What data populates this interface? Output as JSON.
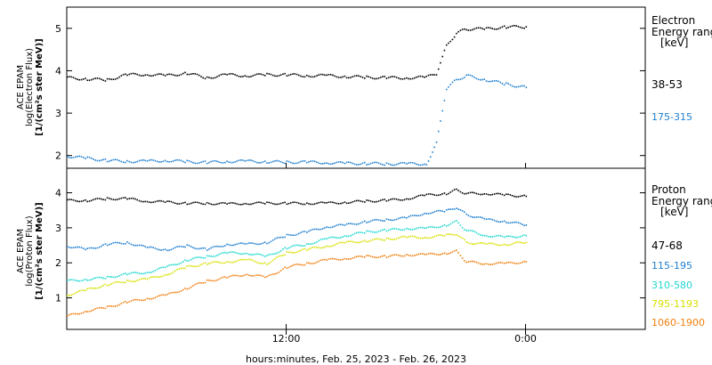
{
  "chart_data": [
    {
      "type": "scatter",
      "panel": "electron",
      "ylabel_lines": [
        "ACE EPAM",
        "log(Electron Flux)",
        "[1/(cm²s ster MeV)]"
      ],
      "ylim": [
        1.7,
        5.5
      ],
      "yticks": [
        "2",
        "3",
        "4",
        "5"
      ],
      "legend_title_lines": [
        "Electron",
        "Energy range",
        "[keV]"
      ],
      "series": [
        {
          "name": "38-53",
          "color": "#000000",
          "points": [
            [
              -12,
              3.9
            ],
            [
              -11,
              3.85
            ],
            [
              -10,
              3.82
            ],
            [
              -9,
              3.8
            ],
            [
              -8,
              3.92
            ],
            [
              -7,
              3.93
            ],
            [
              -6,
              3.9
            ],
            [
              -5,
              3.96
            ],
            [
              -4,
              3.85
            ],
            [
              -3,
              3.92
            ],
            [
              -2,
              3.9
            ],
            [
              -1,
              3.92
            ],
            [
              0,
              3.92
            ],
            [
              1,
              3.9
            ],
            [
              2,
              3.9
            ],
            [
              3,
              3.88
            ],
            [
              4,
              3.86
            ],
            [
              5,
              3.85
            ],
            [
              6,
              3.85
            ],
            [
              7,
              3.86
            ],
            [
              7.5,
              3.95
            ],
            [
              8,
              4.6
            ],
            [
              8.5,
              4.9
            ],
            [
              9,
              5.0
            ],
            [
              10,
              5.0
            ],
            [
              11,
              5.05
            ],
            [
              12,
              5.05
            ]
          ]
        },
        {
          "name": "175-315",
          "color": "#1f7fd0",
          "points": [
            [
              -12,
              2.05
            ],
            [
              -11,
              2.0
            ],
            [
              -10,
              1.95
            ],
            [
              -9,
              1.9
            ],
            [
              -8,
              1.88
            ],
            [
              -7,
              1.88
            ],
            [
              -6,
              1.9
            ],
            [
              -5,
              1.87
            ],
            [
              -4,
              1.85
            ],
            [
              -3,
              1.88
            ],
            [
              -2,
              1.88
            ],
            [
              -1,
              1.87
            ],
            [
              0,
              1.86
            ],
            [
              1,
              1.86
            ],
            [
              2,
              1.85
            ],
            [
              3,
              1.83
            ],
            [
              4,
              1.83
            ],
            [
              5,
              1.82
            ],
            [
              6,
              1.82
            ],
            [
              7,
              1.82
            ],
            [
              7.5,
              2.3
            ],
            [
              8,
              3.6
            ],
            [
              8.5,
              3.8
            ],
            [
              9,
              3.9
            ],
            [
              10,
              3.8
            ],
            [
              11,
              3.7
            ],
            [
              12,
              3.62
            ]
          ]
        }
      ]
    },
    {
      "type": "scatter",
      "panel": "proton",
      "ylabel_lines": [
        "ACE EPAM",
        "log(Proton Flux)",
        "[1/(cm²s ster MeV)]"
      ],
      "ylim": [
        0.1,
        4.7
      ],
      "yticks": [
        "1",
        "2",
        "3",
        "4"
      ],
      "legend_title_lines": [
        "Proton",
        "Energy range",
        "[keV]"
      ],
      "series": [
        {
          "name": "47-68",
          "color": "#000000",
          "points": [
            [
              -12,
              3.75
            ],
            [
              -11,
              3.8
            ],
            [
              -10,
              3.8
            ],
            [
              -9,
              3.85
            ],
            [
              -8,
              3.85
            ],
            [
              -7,
              3.78
            ],
            [
              -6,
              3.75
            ],
            [
              -5,
              3.72
            ],
            [
              -4,
              3.72
            ],
            [
              -3,
              3.7
            ],
            [
              -2,
              3.72
            ],
            [
              -1,
              3.72
            ],
            [
              0,
              3.72
            ],
            [
              1,
              3.72
            ],
            [
              2,
              3.72
            ],
            [
              3,
              3.75
            ],
            [
              4,
              3.78
            ],
            [
              5,
              3.8
            ],
            [
              6,
              3.85
            ],
            [
              7,
              3.95
            ],
            [
              8,
              4.0
            ],
            [
              8.5,
              4.1
            ],
            [
              9,
              4.0
            ],
            [
              10,
              4.0
            ],
            [
              11,
              3.95
            ],
            [
              12,
              3.92
            ]
          ]
        },
        {
          "name": "115-195",
          "color": "#1f7fd0",
          "points": [
            [
              -12,
              2.5
            ],
            [
              -11,
              2.5
            ],
            [
              -10,
              2.4
            ],
            [
              -9,
              2.55
            ],
            [
              -8,
              2.6
            ],
            [
              -7,
              2.45
            ],
            [
              -6,
              2.4
            ],
            [
              -5,
              2.5
            ],
            [
              -4,
              2.4
            ],
            [
              -3,
              2.55
            ],
            [
              -2,
              2.55
            ],
            [
              -1,
              2.6
            ],
            [
              0,
              2.8
            ],
            [
              1,
              2.9
            ],
            [
              2,
              3.05
            ],
            [
              3,
              3.1
            ],
            [
              4,
              3.2
            ],
            [
              5,
              3.25
            ],
            [
              6,
              3.3
            ],
            [
              7,
              3.45
            ],
            [
              8,
              3.5
            ],
            [
              8.5,
              3.6
            ],
            [
              9,
              3.4
            ],
            [
              10,
              3.25
            ],
            [
              11,
              3.2
            ],
            [
              12,
              3.1
            ]
          ]
        },
        {
          "name": "310-580",
          "color": "#20d8d0",
          "points": [
            [
              -12,
              1.5
            ],
            [
              -11,
              1.5
            ],
            [
              -10,
              1.55
            ],
            [
              -9,
              1.6
            ],
            [
              -8,
              1.7
            ],
            [
              -7,
              1.75
            ],
            [
              -6,
              1.9
            ],
            [
              -5,
              2.1
            ],
            [
              -4,
              2.2
            ],
            [
              -3,
              2.3
            ],
            [
              -2,
              2.3
            ],
            [
              -1,
              2.2
            ],
            [
              0,
              2.45
            ],
            [
              1,
              2.55
            ],
            [
              2,
              2.7
            ],
            [
              3,
              2.8
            ],
            [
              4,
              2.9
            ],
            [
              5,
              2.95
            ],
            [
              6,
              3.0
            ],
            [
              7,
              3.0
            ],
            [
              8,
              3.1
            ],
            [
              8.5,
              3.2
            ],
            [
              9,
              2.95
            ],
            [
              10,
              2.8
            ],
            [
              11,
              2.75
            ],
            [
              12,
              2.8
            ]
          ]
        },
        {
          "name": "795-1193",
          "color": "#d8e000",
          "points": [
            [
              -12,
              0.95
            ],
            [
              -11,
              1.1
            ],
            [
              -10,
              1.25
            ],
            [
              -9,
              1.4
            ],
            [
              -8,
              1.5
            ],
            [
              -7,
              1.55
            ],
            [
              -6,
              1.7
            ],
            [
              -5,
              1.9
            ],
            [
              -4,
              2.0
            ],
            [
              -3,
              2.05
            ],
            [
              -2,
              2.1
            ],
            [
              -1,
              2.0
            ],
            [
              0,
              2.3
            ],
            [
              1,
              2.4
            ],
            [
              2,
              2.5
            ],
            [
              3,
              2.6
            ],
            [
              4,
              2.65
            ],
            [
              5,
              2.7
            ],
            [
              6,
              2.75
            ],
            [
              7,
              2.75
            ],
            [
              8,
              2.8
            ],
            [
              8.5,
              2.85
            ],
            [
              9,
              2.6
            ],
            [
              10,
              2.55
            ],
            [
              11,
              2.55
            ],
            [
              12,
              2.6
            ]
          ]
        },
        {
          "name": "1060-1900",
          "color": "#f08010",
          "points": [
            [
              -12,
              0.35
            ],
            [
              -11,
              0.5
            ],
            [
              -10,
              0.65
            ],
            [
              -9,
              0.75
            ],
            [
              -8,
              0.9
            ],
            [
              -7,
              1.0
            ],
            [
              -6,
              1.1
            ],
            [
              -5,
              1.3
            ],
            [
              -4,
              1.5
            ],
            [
              -3,
              1.6
            ],
            [
              -2,
              1.7
            ],
            [
              -1,
              1.6
            ],
            [
              0,
              1.9
            ],
            [
              1,
              2.0
            ],
            [
              2,
              2.1
            ],
            [
              3,
              2.15
            ],
            [
              4,
              2.2
            ],
            [
              5,
              2.2
            ],
            [
              6,
              2.25
            ],
            [
              7,
              2.25
            ],
            [
              8,
              2.3
            ],
            [
              8.5,
              2.35
            ],
            [
              9,
              2.05
            ],
            [
              10,
              2.0
            ],
            [
              11,
              2.0
            ],
            [
              12,
              2.05
            ]
          ]
        }
      ]
    }
  ],
  "xaxis": {
    "ticks": [
      {
        "t": 0,
        "label": "12:00"
      },
      {
        "t": 12,
        "label": "0:00"
      }
    ],
    "xlim": [
      -11,
      18
    ],
    "xlabel": "hours:minutes, Feb. 25, 2023 - Feb. 26, 2023"
  }
}
